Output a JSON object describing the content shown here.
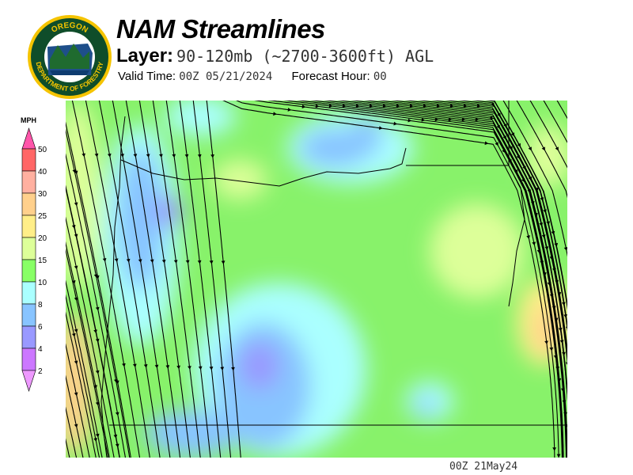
{
  "header": {
    "title": "NAM Streamlines",
    "layer_label": "Layer:",
    "layer_value": "90-120mb (~2700-3600ft) AGL",
    "valid_label": "Valid Time:",
    "valid_value": "00Z 05/21/2024",
    "forecast_label": "Forecast Hour:",
    "forecast_value": "00"
  },
  "logo": {
    "text_top": "OREGON",
    "text_bottom": "DEPARTMENT OF FORESTRY"
  },
  "legend": {
    "unit": "MPH",
    "labels": [
      "50",
      "40",
      "30",
      "25",
      "20",
      "15",
      "10",
      "8",
      "6",
      "4",
      "2"
    ],
    "colors": [
      "#ff6666",
      "#ffb0a0",
      "#ffd08c",
      "#ffee88",
      "#ddff99",
      "#88ff66",
      "#aaffff",
      "#88c4ff",
      "#9999ff",
      "#cc77ff"
    ],
    "over_color": "#ff55aa",
    "under_color": "#ee99ff"
  },
  "map": {
    "background": "#88f26a",
    "streamline_color": "#000000"
  },
  "footer": {
    "stamp": "00Z 21May24"
  }
}
